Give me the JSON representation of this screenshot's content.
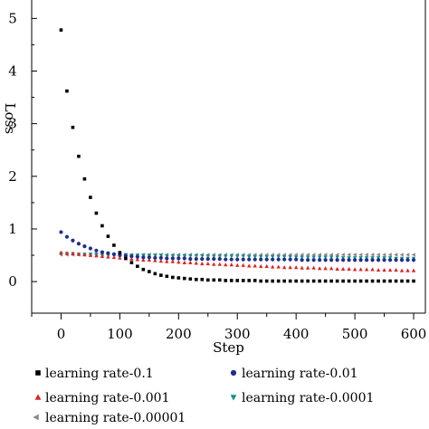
{
  "chart_data": {
    "type": "scatter",
    "title": "",
    "xlabel": "Step",
    "ylabel": "Loss",
    "xlim": [
      -50,
      620
    ],
    "ylim": [
      -0.6,
      5.35
    ],
    "xticks": [
      0,
      100,
      200,
      300,
      400,
      500,
      600
    ],
    "yticks": [
      0,
      1,
      2,
      3,
      4,
      5
    ],
    "grid": false,
    "legend": "bottom",
    "series": [
      {
        "name": "learning rate-0.1",
        "marker": "square",
        "color": "#000000",
        "x": [
          0,
          10,
          20,
          30,
          40,
          50,
          60,
          70,
          80,
          90,
          100,
          110,
          120,
          130,
          140,
          150,
          160,
          170,
          180,
          190,
          200,
          210,
          220,
          230,
          240,
          250,
          260,
          270,
          280,
          290,
          300,
          310,
          320,
          330,
          340,
          350,
          360,
          370,
          380,
          390,
          400,
          410,
          420,
          430,
          440,
          450,
          460,
          470,
          480,
          490,
          500,
          510,
          520,
          530,
          540,
          550,
          560,
          570,
          580,
          590,
          600
        ],
        "y": [
          4.78,
          3.62,
          2.93,
          2.38,
          1.95,
          1.6,
          1.3,
          1.06,
          0.86,
          0.69,
          0.55,
          0.44,
          0.36,
          0.29,
          0.23,
          0.19,
          0.15,
          0.12,
          0.1,
          0.08,
          0.07,
          0.06,
          0.05,
          0.04,
          0.04,
          0.03,
          0.03,
          0.03,
          0.02,
          0.02,
          0.02,
          0.02,
          0.02,
          0.02,
          0.01,
          0.01,
          0.01,
          0.01,
          0.01,
          0.01,
          0.01,
          0.01,
          0.01,
          0.01,
          0.01,
          0.01,
          0.01,
          0.01,
          0.01,
          0.01,
          0.01,
          0.01,
          0.01,
          0.01,
          0.01,
          0.01,
          0.01,
          0.01,
          0.01,
          0.01,
          0.01
        ]
      },
      {
        "name": "learning rate-0.01",
        "marker": "circle",
        "color": "#1f2f8f",
        "x": [
          0,
          10,
          20,
          30,
          40,
          50,
          60,
          70,
          80,
          90,
          100,
          110,
          120,
          130,
          140,
          150,
          160,
          170,
          180,
          190,
          200,
          210,
          220,
          230,
          240,
          250,
          260,
          270,
          280,
          290,
          300,
          310,
          320,
          330,
          340,
          350,
          360,
          370,
          380,
          390,
          400,
          410,
          420,
          430,
          440,
          450,
          460,
          470,
          480,
          490,
          500,
          510,
          520,
          530,
          540,
          550,
          560,
          570,
          580,
          590,
          600
        ],
        "y": [
          0.94,
          0.85,
          0.78,
          0.72,
          0.67,
          0.63,
          0.59,
          0.56,
          0.54,
          0.52,
          0.5,
          0.49,
          0.48,
          0.47,
          0.46,
          0.46,
          0.45,
          0.45,
          0.44,
          0.44,
          0.44,
          0.44,
          0.43,
          0.43,
          0.43,
          0.43,
          0.43,
          0.43,
          0.42,
          0.42,
          0.42,
          0.42,
          0.42,
          0.42,
          0.42,
          0.42,
          0.42,
          0.42,
          0.42,
          0.42,
          0.42,
          0.41,
          0.41,
          0.41,
          0.41,
          0.41,
          0.41,
          0.41,
          0.41,
          0.41,
          0.41,
          0.41,
          0.41,
          0.41,
          0.41,
          0.41,
          0.41,
          0.41,
          0.41,
          0.41,
          0.41
        ]
      },
      {
        "name": "learning rate-0.001",
        "marker": "triangle-up",
        "color": "#e0201e",
        "x": [
          0,
          10,
          20,
          30,
          40,
          50,
          60,
          70,
          80,
          90,
          100,
          110,
          120,
          130,
          140,
          150,
          160,
          170,
          180,
          190,
          200,
          210,
          220,
          230,
          240,
          250,
          260,
          270,
          280,
          290,
          300,
          310,
          320,
          330,
          340,
          350,
          360,
          370,
          380,
          390,
          400,
          410,
          420,
          430,
          440,
          450,
          460,
          470,
          480,
          490,
          500,
          510,
          520,
          530,
          540,
          550,
          560,
          570,
          580,
          590,
          600
        ],
        "y": [
          0.55,
          0.54,
          0.53,
          0.52,
          0.51,
          0.5,
          0.49,
          0.48,
          0.47,
          0.46,
          0.45,
          0.44,
          0.43,
          0.42,
          0.41,
          0.41,
          0.4,
          0.39,
          0.38,
          0.38,
          0.37,
          0.36,
          0.36,
          0.35,
          0.34,
          0.34,
          0.33,
          0.33,
          0.32,
          0.32,
          0.31,
          0.31,
          0.3,
          0.3,
          0.29,
          0.29,
          0.28,
          0.28,
          0.27,
          0.27,
          0.27,
          0.26,
          0.26,
          0.26,
          0.25,
          0.25,
          0.25,
          0.24,
          0.24,
          0.24,
          0.23,
          0.23,
          0.23,
          0.23,
          0.22,
          0.22,
          0.22,
          0.22,
          0.21,
          0.21,
          0.21
        ]
      },
      {
        "name": "learning rate-0.0001",
        "marker": "triangle-down",
        "color": "#1a8c8c",
        "x": [
          0,
          10,
          20,
          30,
          40,
          50,
          60,
          70,
          80,
          90,
          100,
          110,
          120,
          130,
          140,
          150,
          160,
          170,
          180,
          190,
          200,
          210,
          220,
          230,
          240,
          250,
          260,
          270,
          280,
          290,
          300,
          310,
          320,
          330,
          340,
          350,
          360,
          370,
          380,
          390,
          400,
          410,
          420,
          430,
          440,
          450,
          460,
          470,
          480,
          490,
          500,
          510,
          520,
          530,
          540,
          550,
          560,
          570,
          580,
          590,
          600
        ],
        "y": [
          0.53,
          0.53,
          0.53,
          0.52,
          0.52,
          0.52,
          0.52,
          0.51,
          0.51,
          0.51,
          0.51,
          0.51,
          0.5,
          0.5,
          0.5,
          0.5,
          0.5,
          0.5,
          0.49,
          0.49,
          0.49,
          0.49,
          0.49,
          0.49,
          0.49,
          0.48,
          0.48,
          0.48,
          0.48,
          0.48,
          0.48,
          0.48,
          0.47,
          0.47,
          0.47,
          0.47,
          0.47,
          0.47,
          0.47,
          0.47,
          0.46,
          0.46,
          0.46,
          0.46,
          0.46,
          0.46,
          0.46,
          0.46,
          0.45,
          0.45,
          0.45,
          0.45,
          0.45,
          0.45,
          0.45,
          0.45,
          0.45,
          0.44,
          0.44,
          0.44,
          0.44
        ]
      },
      {
        "name": "learning rate-0.00001",
        "marker": "triangle-left",
        "color": "#8a8a8a",
        "x": [
          0,
          10,
          20,
          30,
          40,
          50,
          60,
          70,
          80,
          90,
          100,
          110,
          120,
          130,
          140,
          150,
          160,
          170,
          180,
          190,
          200,
          210,
          220,
          230,
          240,
          250,
          260,
          270,
          280,
          290,
          300,
          310,
          320,
          330,
          340,
          350,
          360,
          370,
          380,
          390,
          400,
          410,
          420,
          430,
          440,
          450,
          460,
          470,
          480,
          490,
          500,
          510,
          520,
          530,
          540,
          550,
          560,
          570,
          580,
          590,
          600
        ],
        "y": [
          0.51,
          0.51,
          0.51,
          0.51,
          0.51,
          0.51,
          0.51,
          0.51,
          0.51,
          0.51,
          0.51,
          0.51,
          0.51,
          0.51,
          0.51,
          0.51,
          0.51,
          0.51,
          0.51,
          0.51,
          0.51,
          0.51,
          0.51,
          0.51,
          0.51,
          0.51,
          0.51,
          0.51,
          0.51,
          0.51,
          0.51,
          0.51,
          0.51,
          0.51,
          0.51,
          0.51,
          0.51,
          0.51,
          0.51,
          0.51,
          0.51,
          0.51,
          0.51,
          0.51,
          0.51,
          0.51,
          0.51,
          0.51,
          0.51,
          0.51,
          0.51,
          0.51,
          0.51,
          0.51,
          0.51,
          0.51,
          0.51,
          0.51,
          0.51,
          0.51,
          0.51
        ]
      }
    ]
  }
}
